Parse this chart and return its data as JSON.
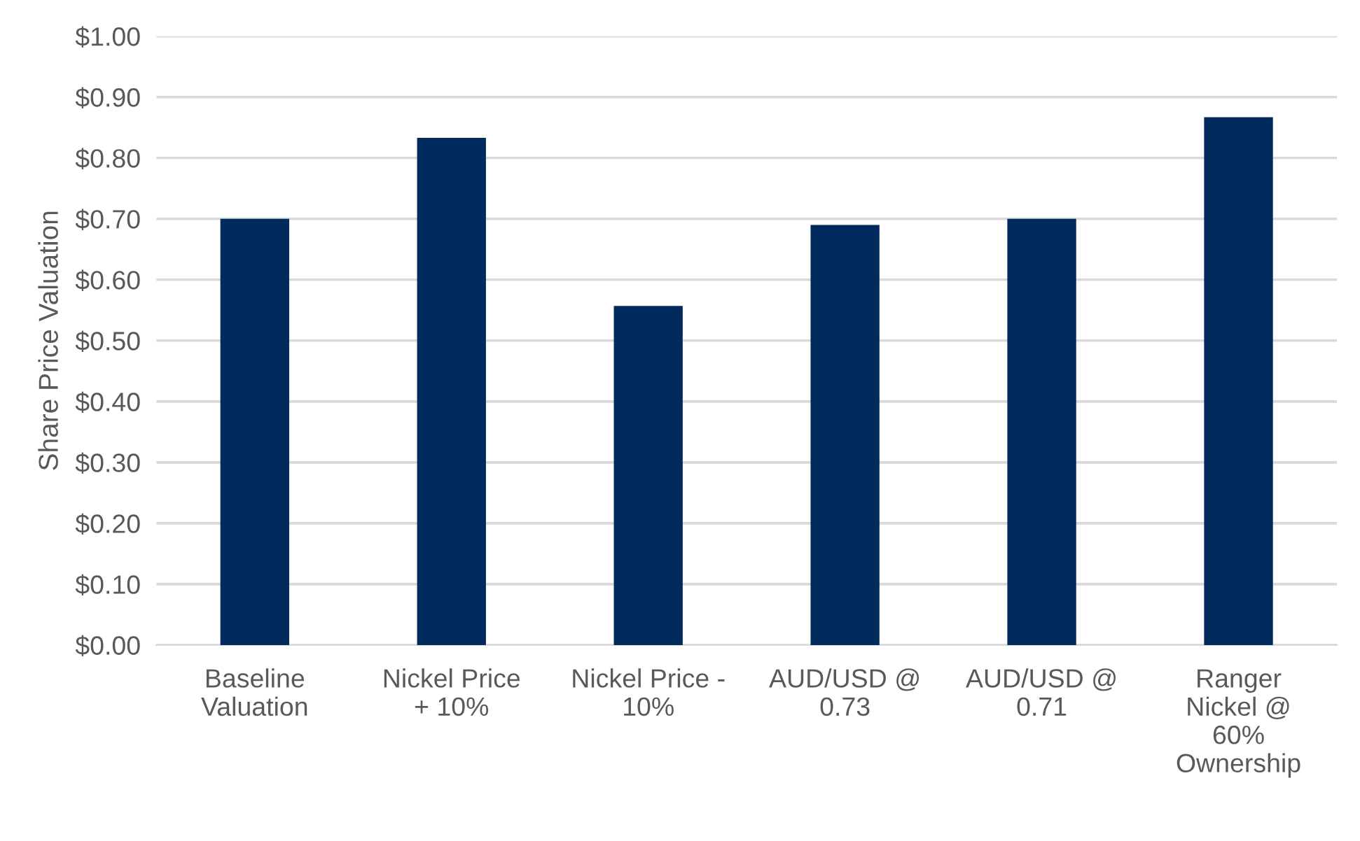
{
  "chart_data": {
    "type": "bar",
    "ylabel": "Share Price Valuation",
    "categories": [
      "Baseline\nValuation",
      "Nickel Price\n+ 10%",
      "Nickel Price -\n10%",
      "AUD/USD @\n0.73",
      "AUD/USD @\n0.71",
      "Ranger\nNickel @\n60%\nOwnership"
    ],
    "values": [
      0.7,
      0.833,
      0.557,
      0.69,
      0.7,
      0.867
    ],
    "color": "#002b5c",
    "ylim": [
      0,
      1.0
    ],
    "yticks": [
      {
        "value": 0,
        "label": "$0.00"
      },
      {
        "value": 0.1,
        "label": "$0.10"
      },
      {
        "value": 0.2,
        "label": "$0.20"
      },
      {
        "value": 0.3,
        "label": "$0.30"
      },
      {
        "value": 0.4,
        "label": "$0.40"
      },
      {
        "value": 0.5,
        "label": "$0.50"
      },
      {
        "value": 0.6,
        "label": "$0.60"
      },
      {
        "value": 0.7,
        "label": "$0.70"
      },
      {
        "value": 0.8,
        "label": "$0.80"
      },
      {
        "value": 0.9,
        "label": "$0.90"
      },
      {
        "value": 1.0,
        "label": "$1.00"
      }
    ],
    "grid": "y"
  }
}
